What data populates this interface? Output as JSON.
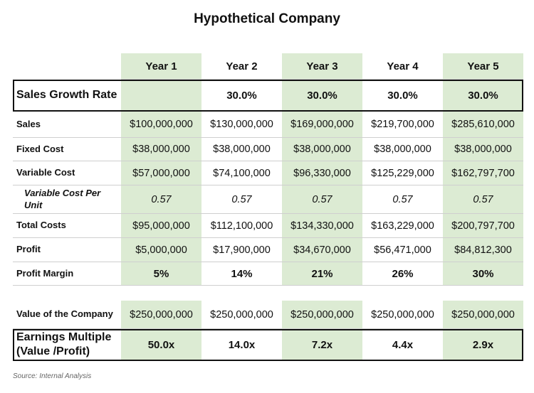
{
  "header": {
    "title": "Hypothetical Company"
  },
  "table": {
    "columns": [
      "Year 1",
      "Year 2",
      "Year 3",
      "Year 4",
      "Year 5"
    ],
    "rows": [
      {
        "label": "Sales Growth Rate",
        "cells": [
          null,
          "30.0%",
          "30.0%",
          "30.0%",
          "30.0%"
        ]
      },
      {
        "label": "Sales",
        "cells": [
          "$100,000,000",
          "$130,000,000",
          "$169,000,000",
          "$219,700,000",
          "$285,610,000"
        ]
      },
      {
        "label": "Fixed Cost",
        "cells": [
          "$38,000,000",
          "$38,000,000",
          "$38,000,000",
          "$38,000,000",
          "$38,000,000"
        ]
      },
      {
        "label": "Variable Cost",
        "cells": [
          "$57,000,000",
          "$74,100,000",
          "$96,330,000",
          "$125,229,000",
          "$162,797,700"
        ]
      },
      {
        "label": "Variable Cost Per Unit",
        "cells": [
          "0.57",
          "0.57",
          "0.57",
          "0.57",
          "0.57"
        ]
      },
      {
        "label": "Total Costs",
        "cells": [
          "$95,000,000",
          "$112,100,000",
          "$134,330,000",
          "$163,229,000",
          "$200,797,700"
        ]
      },
      {
        "label": "Profit",
        "cells": [
          "$5,000,000",
          "$17,900,000",
          "$34,670,000",
          "$56,471,000",
          "$84,812,300"
        ]
      },
      {
        "label": "Profit Margin",
        "cells": [
          "5%",
          "14%",
          "21%",
          "26%",
          "30%"
        ]
      }
    ]
  },
  "valuation_table": {
    "rows": [
      {
        "label": "Value of the Company",
        "cells": [
          "$250,000,000",
          "$250,000,000",
          "$250,000,000",
          "$250,000,000",
          "$250,000,000"
        ]
      },
      {
        "label": "Earnings Multiple (Value /Profit)",
        "cells": [
          "50.0x",
          "14.0x",
          "7.2x",
          "4.4x",
          "2.9x"
        ]
      }
    ]
  },
  "source": "Source: Internal Analysis"
}
